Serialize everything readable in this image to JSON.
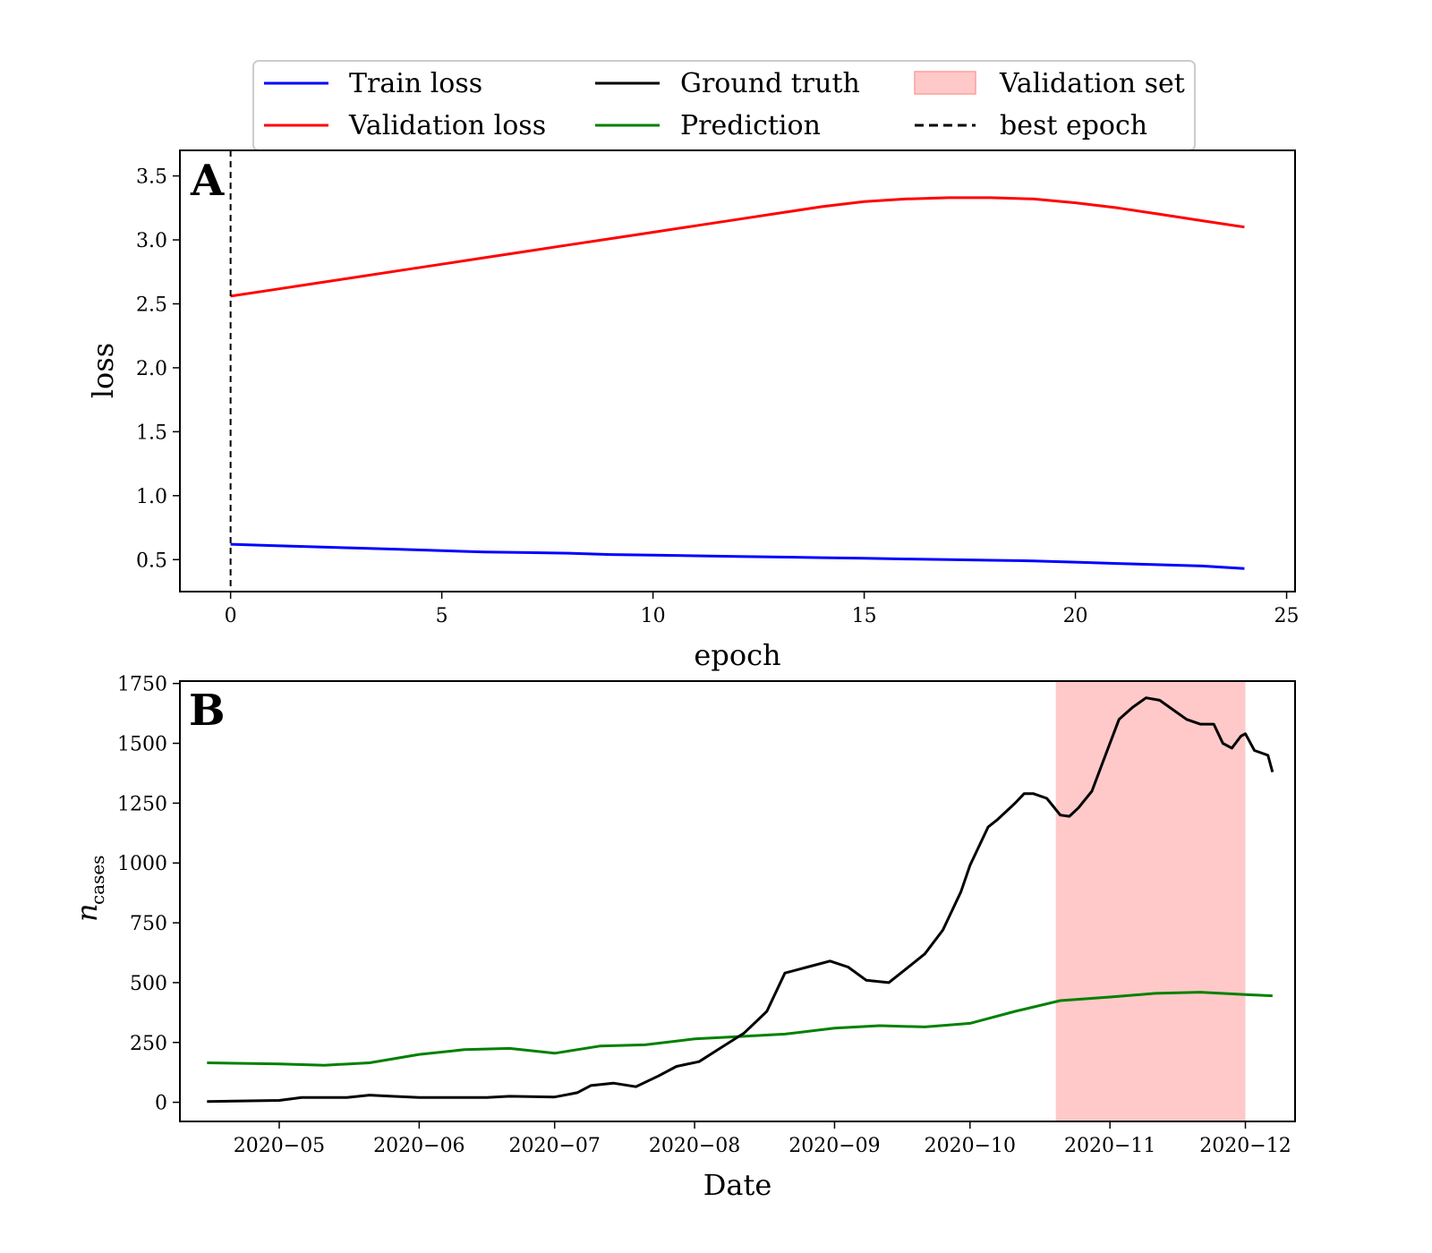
{
  "chart_data": [
    {
      "panel": "A",
      "type": "line",
      "xlabel": "epoch",
      "ylabel": "loss",
      "xlim": [
        -1.2,
        25.2
      ],
      "ylim": [
        0.25,
        3.7
      ],
      "xticks": [
        0,
        5,
        10,
        15,
        20,
        25
      ],
      "yticks": [
        0.5,
        1.0,
        1.5,
        2.0,
        2.5,
        3.0,
        3.5
      ],
      "series": [
        {
          "name": "Train loss",
          "color": "#0000ff",
          "x": [
            0,
            1,
            2,
            3,
            4,
            5,
            6,
            7,
            8,
            9,
            10,
            11,
            12,
            13,
            14,
            15,
            16,
            17,
            18,
            19,
            20,
            21,
            22,
            23,
            24
          ],
          "y": [
            0.62,
            0.61,
            0.6,
            0.59,
            0.58,
            0.57,
            0.56,
            0.555,
            0.55,
            0.54,
            0.535,
            0.53,
            0.525,
            0.52,
            0.515,
            0.51,
            0.505,
            0.5,
            0.495,
            0.49,
            0.48,
            0.47,
            0.46,
            0.45,
            0.43
          ]
        },
        {
          "name": "Validation loss",
          "color": "#ff0000",
          "x": [
            0,
            1,
            2,
            3,
            4,
            5,
            6,
            7,
            8,
            9,
            10,
            11,
            12,
            13,
            14,
            15,
            16,
            17,
            18,
            19,
            20,
            21,
            22,
            23,
            24
          ],
          "y": [
            2.56,
            2.61,
            2.66,
            2.71,
            2.76,
            2.81,
            2.86,
            2.91,
            2.96,
            3.01,
            3.06,
            3.11,
            3.16,
            3.21,
            3.26,
            3.3,
            3.32,
            3.33,
            3.33,
            3.32,
            3.29,
            3.25,
            3.2,
            3.15,
            3.1
          ]
        }
      ],
      "best_epoch": 0,
      "legend": "top, outside",
      "grid": false
    },
    {
      "panel": "B",
      "type": "line",
      "xlabel": "Date",
      "ylabel_main": "n",
      "ylabel_sub": "cases",
      "xlim": [
        "2020-04-09",
        "2020-12-12"
      ],
      "ylim": [
        -80,
        1760
      ],
      "xticks": [
        "2020-05-01",
        "2020-06-01",
        "2020-07-01",
        "2020-08-01",
        "2020-09-01",
        "2020-10-01",
        "2020-11-01",
        "2020-12-01"
      ],
      "xtick_labels": [
        "2020−05",
        "2020−06",
        "2020−07",
        "2020−08",
        "2020−09",
        "2020−10",
        "2020−11",
        "2020−12"
      ],
      "yticks": [
        0,
        250,
        500,
        750,
        1000,
        1250,
        1500,
        1750
      ],
      "validation_span": [
        "2020-10-20",
        "2020-12-01"
      ],
      "series": [
        {
          "name": "Ground truth",
          "color": "#000000",
          "points": [
            [
              "2020-04-15",
              3
            ],
            [
              "2020-05-01",
              8
            ],
            [
              "2020-05-06",
              20
            ],
            [
              "2020-05-16",
              20
            ],
            [
              "2020-05-21",
              30
            ],
            [
              "2020-05-26",
              25
            ],
            [
              "2020-06-01",
              20
            ],
            [
              "2020-06-16",
              20
            ],
            [
              "2020-06-21",
              25
            ],
            [
              "2020-07-01",
              22
            ],
            [
              "2020-07-06",
              40
            ],
            [
              "2020-07-09",
              70
            ],
            [
              "2020-07-14",
              80
            ],
            [
              "2020-07-19",
              65
            ],
            [
              "2020-07-24",
              110
            ],
            [
              "2020-07-28",
              150
            ],
            [
              "2020-08-02",
              170
            ],
            [
              "2020-08-07",
              230
            ],
            [
              "2020-08-12",
              290
            ],
            [
              "2020-08-17",
              380
            ],
            [
              "2020-08-21",
              540
            ],
            [
              "2020-08-26",
              565
            ],
            [
              "2020-08-31",
              590
            ],
            [
              "2020-09-04",
              565
            ],
            [
              "2020-09-08",
              510
            ],
            [
              "2020-09-13",
              500
            ],
            [
              "2020-09-17",
              560
            ],
            [
              "2020-09-21",
              620
            ],
            [
              "2020-09-25",
              720
            ],
            [
              "2020-09-29",
              880
            ],
            [
              "2020-10-01",
              990
            ],
            [
              "2020-10-05",
              1150
            ],
            [
              "2020-10-07",
              1180
            ],
            [
              "2020-10-11",
              1250
            ],
            [
              "2020-10-13",
              1290
            ],
            [
              "2020-10-15",
              1290
            ],
            [
              "2020-10-18",
              1270
            ],
            [
              "2020-10-21",
              1200
            ],
            [
              "2020-10-23",
              1195
            ],
            [
              "2020-10-25",
              1230
            ],
            [
              "2020-10-28",
              1300
            ],
            [
              "2020-10-31",
              1450
            ],
            [
              "2020-11-03",
              1600
            ],
            [
              "2020-11-06",
              1650
            ],
            [
              "2020-11-09",
              1690
            ],
            [
              "2020-11-12",
              1680
            ],
            [
              "2020-11-15",
              1640
            ],
            [
              "2020-11-18",
              1600
            ],
            [
              "2020-11-21",
              1580
            ],
            [
              "2020-11-24",
              1580
            ],
            [
              "2020-11-26",
              1500
            ],
            [
              "2020-11-28",
              1480
            ],
            [
              "2020-11-30",
              1530
            ],
            [
              "2020-12-01",
              1540
            ],
            [
              "2020-12-03",
              1470
            ],
            [
              "2020-12-06",
              1450
            ],
            [
              "2020-12-07",
              1380
            ]
          ]
        },
        {
          "name": "Prediction",
          "color": "#008000",
          "points": [
            [
              "2020-04-15",
              165
            ],
            [
              "2020-05-01",
              160
            ],
            [
              "2020-05-11",
              155
            ],
            [
              "2020-05-21",
              165
            ],
            [
              "2020-06-01",
              200
            ],
            [
              "2020-06-11",
              220
            ],
            [
              "2020-06-21",
              225
            ],
            [
              "2020-07-01",
              205
            ],
            [
              "2020-07-11",
              235
            ],
            [
              "2020-07-21",
              240
            ],
            [
              "2020-08-01",
              265
            ],
            [
              "2020-08-11",
              275
            ],
            [
              "2020-08-21",
              285
            ],
            [
              "2020-09-01",
              310
            ],
            [
              "2020-09-11",
              320
            ],
            [
              "2020-09-21",
              315
            ],
            [
              "2020-10-01",
              330
            ],
            [
              "2020-10-11",
              380
            ],
            [
              "2020-10-21",
              425
            ],
            [
              "2020-11-01",
              440
            ],
            [
              "2020-11-11",
              455
            ],
            [
              "2020-11-21",
              460
            ],
            [
              "2020-12-01",
              450
            ],
            [
              "2020-12-07",
              445
            ]
          ]
        }
      ],
      "grid": false
    }
  ],
  "legend": {
    "entries": [
      {
        "label": "Train loss",
        "kind": "line",
        "color": "#0000ff"
      },
      {
        "label": "Validation loss",
        "kind": "line",
        "color": "#ff0000"
      },
      {
        "label": "Ground truth",
        "kind": "line",
        "color": "#000000"
      },
      {
        "label": "Prediction",
        "kind": "line",
        "color": "#008000"
      },
      {
        "label": "Validation set",
        "kind": "patch",
        "color": "#ffc9c9"
      },
      {
        "label": "best epoch",
        "kind": "dashed",
        "color": "#000000"
      }
    ]
  },
  "panel_letters": {
    "a": "A",
    "b": "B"
  }
}
